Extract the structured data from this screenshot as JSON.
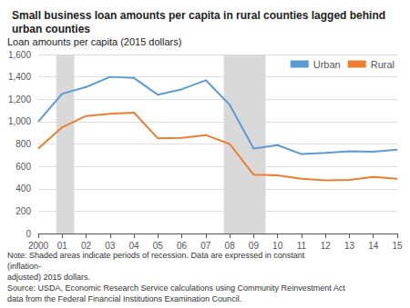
{
  "chart_data": {
    "type": "line",
    "title": "Small business loan amounts per capita in rural counties lagged behind urban counties",
    "ylabel": "Loan amounts per capita (2015 dollars)",
    "x": [
      2000,
      2001,
      2002,
      2003,
      2004,
      2005,
      2006,
      2007,
      2008,
      2009,
      2010,
      2011,
      2012,
      2013,
      2014,
      2015
    ],
    "series": [
      {
        "name": "Urban",
        "color": "#5b9bd5",
        "values": [
          1000,
          1250,
          1310,
          1400,
          1390,
          1240,
          1290,
          1370,
          1150,
          760,
          790,
          710,
          720,
          735,
          730,
          750
        ]
      },
      {
        "name": "Rural",
        "color": "#ed7d31",
        "values": [
          760,
          950,
          1050,
          1070,
          1080,
          850,
          855,
          880,
          800,
          525,
          520,
          490,
          475,
          480,
          505,
          490
        ]
      }
    ],
    "recession_bands": [
      [
        2000.75,
        2001.5
      ],
      [
        2007.75,
        2009.5
      ]
    ],
    "recession_color": "#d9d9d9",
    "xlim": [
      2000,
      2015
    ],
    "xticks": [
      2000,
      {
        "value": 2001,
        "label": "01"
      },
      {
        "value": 2002,
        "label": "02"
      },
      {
        "value": 2003,
        "label": "03"
      },
      {
        "value": 2004,
        "label": "04"
      },
      {
        "value": 2005,
        "label": "05"
      },
      {
        "value": 2006,
        "label": "06"
      },
      {
        "value": 2007,
        "label": "07"
      },
      {
        "value": 2008,
        "label": "08"
      },
      {
        "value": 2009,
        "label": "09"
      },
      {
        "value": 2010,
        "label": "10"
      },
      {
        "value": 2011,
        "label": "11"
      },
      {
        "value": 2012,
        "label": "12"
      },
      {
        "value": 2013,
        "label": "13"
      },
      {
        "value": 2014,
        "label": "14"
      },
      {
        "value": 2015,
        "label": "15"
      }
    ],
    "ylim": [
      0,
      1600
    ],
    "yticks": [
      0,
      200,
      400,
      600,
      800,
      {
        "value": 1000,
        "label": "1,000"
      },
      {
        "value": 1200,
        "label": "1,200"
      },
      {
        "value": 1400,
        "label": "1,400"
      },
      {
        "value": 1600,
        "label": "1,600"
      }
    ],
    "annotations": [
      "Note: Shaded areas indicate periods of recession. Data are expressed in constant (inflation-",
      "adjusted) 2015 dollars.",
      "Source: USDA, Economic Research Service calculations using Community Reinvestment Act",
      "data from the Federal Financial Institutions Examination Council."
    ],
    "legend": "upper right",
    "grid": true
  }
}
